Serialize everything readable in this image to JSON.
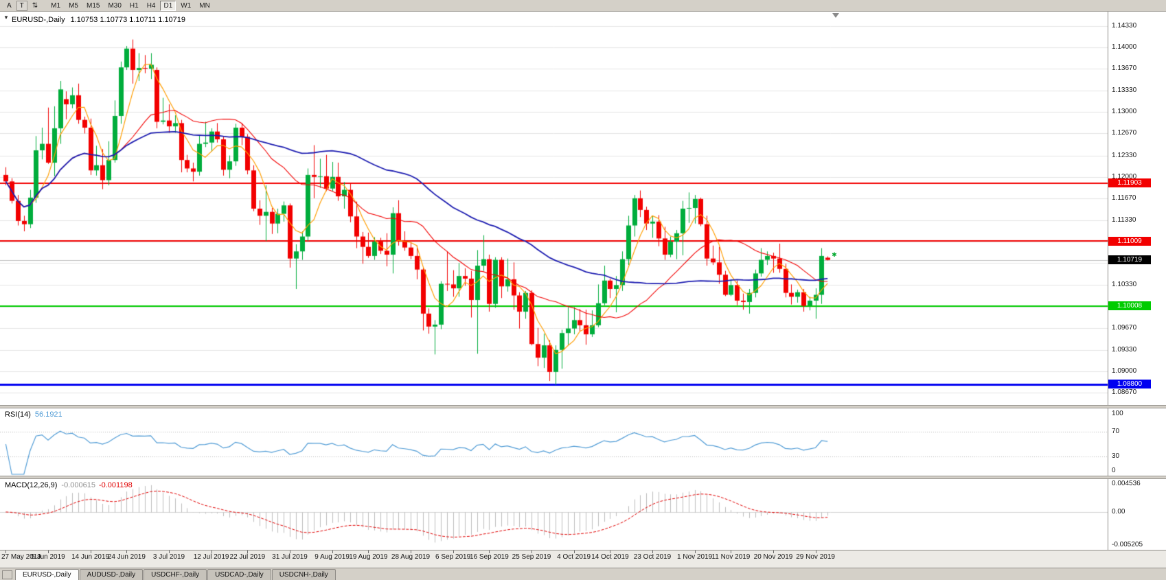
{
  "icons": {
    "one_click_trading": "▼",
    "toolbar_tool": "⇅",
    "order_marker": "✱"
  },
  "toolbar": {
    "left_buttons": [
      {
        "label": "A",
        "boxed": false
      },
      {
        "label": "T",
        "boxed": true
      }
    ],
    "timeframes": [
      "M1",
      "M5",
      "M15",
      "M30",
      "H1",
      "H4",
      "D1",
      "W1",
      "MN"
    ],
    "active_timeframe": "D1"
  },
  "price_panel": {
    "title_symbol": "EURUSD-,Daily",
    "title_ohlc": "1.10753 1.10773 1.10711 1.10719"
  },
  "rsi_panel": {
    "name": "RSI(14)",
    "value": "56.1921",
    "scale": [
      "100",
      "70",
      "30",
      "0"
    ]
  },
  "macd_panel": {
    "name": "MACD(12,26,9)",
    "main_value": "-0.000615",
    "signal_value": "-0.001198",
    "scale": [
      "0.004536",
      "0.00",
      "-0.005205"
    ]
  },
  "tabs": {
    "items": [
      {
        "label": "EURUSD-,Daily",
        "active": true
      },
      {
        "label": "AUDUSD-,Daily",
        "active": false
      },
      {
        "label": "USDCHF-,Daily",
        "active": false
      },
      {
        "label": "USDCAD-,Daily",
        "active": false
      },
      {
        "label": "USDCNH-,Daily",
        "active": false
      }
    ]
  },
  "chart_data": {
    "type": "candlestick",
    "symbol": "EURUSD-",
    "timeframe": "Daily",
    "title": "EURUSD-,Daily 1.10753 1.10773 1.10711 1.10719",
    "ylim": [
      1.0848,
      1.1455
    ],
    "price_ticks": [
      "1.14330",
      "1.14000",
      "1.13670",
      "1.13330",
      "1.13000",
      "1.12670",
      "1.12330",
      "1.12000",
      "1.11670",
      "1.11330",
      "1.11000",
      "1.10670",
      "1.10330",
      "1.10000",
      "1.09670",
      "1.09330",
      "1.09000",
      "1.08670"
    ],
    "x_labels": [
      [
        0,
        "27 May 2019"
      ],
      [
        7,
        "5 Jun 2019"
      ],
      [
        14,
        "14 Jun 2019"
      ],
      [
        20,
        "24 Jun 2019"
      ],
      [
        27,
        "3 Jul 2019"
      ],
      [
        34,
        "12 Jul 2019"
      ],
      [
        40,
        "22 Jul 2019"
      ],
      [
        47,
        "31 Jul 2019"
      ],
      [
        54,
        "9 Aug 2019"
      ],
      [
        60,
        "19 Aug 2019"
      ],
      [
        67,
        "28 Aug 2019"
      ],
      [
        74,
        "6 Sep 2019"
      ],
      [
        80,
        "16 Sep 2019"
      ],
      [
        87,
        "25 Sep 2019"
      ],
      [
        94,
        "4 Oct 2019"
      ],
      [
        100,
        "14 Oct 2019"
      ],
      [
        107,
        "23 Oct 2019"
      ],
      [
        114,
        "1 Nov 2019"
      ],
      [
        120,
        "11 Nov 2019"
      ],
      [
        127,
        "20 Nov 2019"
      ],
      [
        134,
        "29 Nov 2019"
      ]
    ],
    "levels": [
      {
        "price": 1.11903,
        "label": "1.11903",
        "color": "#f20000",
        "width": 2,
        "type": "resistance"
      },
      {
        "price": 1.11009,
        "label": "1.11009",
        "color": "#f20000",
        "width": 2,
        "type": "resistance"
      },
      {
        "price": 1.10008,
        "label": "1.10008",
        "color": "#00cc00",
        "width": 2,
        "type": "support"
      },
      {
        "price": 1.088,
        "label": "1.08800",
        "color": "#0000f0",
        "width": 3,
        "type": "support"
      }
    ],
    "bid": {
      "price": 1.10719,
      "label": "1.10719",
      "color": "#000000"
    },
    "current_bar": {
      "open": 1.10753,
      "high": 1.10773,
      "low": 1.10711,
      "close": 1.10719
    },
    "moving_averages": [
      {
        "period": 5,
        "color": "#ff9e00",
        "width": 1.2
      },
      {
        "period": 20,
        "color": "#f20000",
        "width": 1.1
      },
      {
        "period": 50,
        "color": "#1c1cb0",
        "width": 1.8
      }
    ],
    "indicators": {
      "rsi": {
        "period": 14,
        "current": 56.1921,
        "levels": [
          70,
          30
        ],
        "color": "#4f9bd5"
      },
      "macd": {
        "fast": 12,
        "slow": 26,
        "signal_period": 9,
        "current_main": -0.000615,
        "current_signal": -0.001198,
        "hist_color": "#bdbdbd",
        "signal_color": "#e00000"
      }
    },
    "colors": {
      "bull": "#00ad3c",
      "bear": "#f20000",
      "background": "#ffffff",
      "grid": "#e4e4e4",
      "bid_line": "#c0c0c0"
    },
    "candles": [
      [
        1.1203,
        1.1215,
        1.1187,
        1.1193
      ],
      [
        1.1193,
        1.1198,
        1.1159,
        1.1163
      ],
      [
        1.1163,
        1.1172,
        1.1125,
        1.1132
      ],
      [
        1.1132,
        1.114,
        1.1116,
        1.1127
      ],
      [
        1.1127,
        1.118,
        1.1121,
        1.1168
      ],
      [
        1.1168,
        1.1263,
        1.116,
        1.1241
      ],
      [
        1.1241,
        1.1276,
        1.1227,
        1.1251
      ],
      [
        1.1251,
        1.1307,
        1.122,
        1.1222
      ],
      [
        1.1222,
        1.1309,
        1.1201,
        1.1275
      ],
      [
        1.1275,
        1.1348,
        1.1251,
        1.1335
      ],
      [
        1.132,
        1.1332,
        1.1289,
        1.1312
      ],
      [
        1.1312,
        1.1338,
        1.1306,
        1.1326
      ],
      [
        1.1326,
        1.1344,
        1.1282,
        1.1288
      ],
      [
        1.1288,
        1.1293,
        1.1267,
        1.1276
      ],
      [
        1.1276,
        1.129,
        1.1203,
        1.121
      ],
      [
        1.121,
        1.1248,
        1.1202,
        1.1218
      ],
      [
        1.1218,
        1.1243,
        1.1181,
        1.1195
      ],
      [
        1.1195,
        1.1255,
        1.1187,
        1.1226
      ],
      [
        1.1226,
        1.1318,
        1.1222,
        1.1294
      ],
      [
        1.1294,
        1.1378,
        1.1282,
        1.1369
      ],
      [
        1.1369,
        1.1402,
        1.1365,
        1.1398
      ],
      [
        1.1398,
        1.1412,
        1.1344,
        1.1365
      ],
      [
        1.1365,
        1.1391,
        1.1348,
        1.1368
      ],
      [
        1.1368,
        1.1388,
        1.136,
        1.1367
      ],
      [
        1.1367,
        1.1391,
        1.1351,
        1.1373
      ],
      [
        1.1365,
        1.1369,
        1.1275,
        1.1285
      ],
      [
        1.1285,
        1.1322,
        1.1281,
        1.1287
      ],
      [
        1.1287,
        1.1312,
        1.1268,
        1.1278
      ],
      [
        1.1278,
        1.1295,
        1.1268,
        1.1283
      ],
      [
        1.1283,
        1.1288,
        1.1207,
        1.1226
      ],
      [
        1.1226,
        1.1234,
        1.1207,
        1.1213
      ],
      [
        1.1213,
        1.1222,
        1.1193,
        1.1208
      ],
      [
        1.1208,
        1.1264,
        1.1202,
        1.1251
      ],
      [
        1.1251,
        1.1285,
        1.1246,
        1.1253
      ],
      [
        1.1253,
        1.1275,
        1.1239,
        1.127
      ],
      [
        1.127,
        1.1283,
        1.1253,
        1.1258
      ],
      [
        1.1258,
        1.1263,
        1.1202,
        1.1211
      ],
      [
        1.1211,
        1.1233,
        1.1198,
        1.1224
      ],
      [
        1.1224,
        1.1282,
        1.1217,
        1.1276
      ],
      [
        1.1276,
        1.1283,
        1.1249,
        1.1262
      ],
      [
        1.1262,
        1.1266,
        1.1204,
        1.121
      ],
      [
        1.121,
        1.1218,
        1.1147,
        1.1151
      ],
      [
        1.1151,
        1.1164,
        1.1126,
        1.114
      ],
      [
        1.114,
        1.1187,
        1.1101,
        1.1146
      ],
      [
        1.1146,
        1.1152,
        1.1112,
        1.1128
      ],
      [
        1.1128,
        1.1151,
        1.1113,
        1.1143
      ],
      [
        1.1143,
        1.1162,
        1.1131,
        1.1156
      ],
      [
        1.1156,
        1.1159,
        1.106,
        1.1074
      ],
      [
        1.1074,
        1.1096,
        1.1027,
        1.1085
      ],
      [
        1.1085,
        1.1116,
        1.1072,
        1.1108
      ],
      [
        1.1108,
        1.1213,
        1.1101,
        1.1203
      ],
      [
        1.1203,
        1.1249,
        1.1167,
        1.12
      ],
      [
        1.12,
        1.1228,
        1.1183,
        1.1201
      ],
      [
        1.1201,
        1.1234,
        1.1178,
        1.1182
      ],
      [
        1.1182,
        1.1223,
        1.1178,
        1.12
      ],
      [
        1.12,
        1.1222,
        1.1163,
        1.117
      ],
      [
        1.117,
        1.1192,
        1.1151,
        1.118
      ],
      [
        1.118,
        1.119,
        1.113,
        1.1139
      ],
      [
        1.1139,
        1.1162,
        1.109,
        1.1108
      ],
      [
        1.1108,
        1.1115,
        1.1066,
        1.1092
      ],
      [
        1.1092,
        1.1114,
        1.1075,
        1.1078
      ],
      [
        1.1078,
        1.1107,
        1.1072,
        1.11
      ],
      [
        1.11,
        1.1106,
        1.1081,
        1.1086
      ],
      [
        1.1086,
        1.1113,
        1.1062,
        1.108
      ],
      [
        1.108,
        1.1153,
        1.1051,
        1.1144
      ],
      [
        1.1144,
        1.1164,
        1.1094,
        1.1101
      ],
      [
        1.1101,
        1.1116,
        1.1086,
        1.1091
      ],
      [
        1.1091,
        1.1098,
        1.1073,
        1.1078
      ],
      [
        1.1078,
        1.1094,
        1.1042,
        1.1057
      ],
      [
        1.1057,
        1.1061,
        1.0963,
        1.0989
      ],
      [
        1.0989,
        1.0997,
        1.0958,
        1.0969
      ],
      [
        1.0969,
        1.0979,
        1.0926,
        1.0972
      ],
      [
        1.0972,
        1.1039,
        1.0965,
        1.1035
      ],
      [
        1.1035,
        1.1085,
        1.1024,
        1.1034
      ],
      [
        1.1034,
        1.1056,
        1.1015,
        1.1028
      ],
      [
        1.1028,
        1.1067,
        1.1015,
        1.1047
      ],
      [
        1.1047,
        1.1059,
        1.1032,
        1.1043
      ],
      [
        1.1043,
        1.1055,
        1.0983,
        1.101
      ],
      [
        1.101,
        1.1087,
        1.0927,
        1.1063
      ],
      [
        1.1063,
        1.111,
        1.1055,
        1.1073
      ],
      [
        1.1073,
        1.108,
        1.0992,
        1.1004
      ],
      [
        1.1004,
        1.1076,
        1.0998,
        1.1072
      ],
      [
        1.1072,
        1.1076,
        1.1013,
        1.1031
      ],
      [
        1.1031,
        1.1074,
        1.1023,
        1.1042
      ],
      [
        1.1042,
        1.1068,
        1.0995,
        1.1017
      ],
      [
        1.1017,
        1.1022,
        1.0966,
        1.0992
      ],
      [
        1.0992,
        1.1024,
        1.0981,
        1.1021
      ],
      [
        1.1021,
        1.1025,
        1.094,
        1.0942
      ],
      [
        1.0942,
        1.0967,
        1.0908,
        1.0921
      ],
      [
        1.0921,
        1.0958,
        1.0905,
        1.094
      ],
      [
        1.094,
        1.0948,
        1.0885,
        1.0899
      ],
      [
        1.0899,
        1.094,
        1.0879,
        1.0933
      ],
      [
        1.0933,
        1.0964,
        1.0904,
        1.0959
      ],
      [
        1.0959,
        1.0999,
        1.0941,
        1.0966
      ],
      [
        1.0966,
        1.0999,
        1.0957,
        1.0979
      ],
      [
        1.0979,
        1.0996,
        1.0962,
        1.0971
      ],
      [
        1.0971,
        1.0995,
        1.0941,
        1.0957
      ],
      [
        1.0957,
        1.0994,
        1.0953,
        1.0971
      ],
      [
        1.0971,
        1.1034,
        1.0968,
        1.1005
      ],
      [
        1.1005,
        1.1063,
        1.1002,
        1.104
      ],
      [
        1.104,
        1.1043,
        1.1013,
        1.1027
      ],
      [
        1.1027,
        1.1047,
        1.0991,
        1.1033
      ],
      [
        1.1033,
        1.1085,
        1.1024,
        1.1073
      ],
      [
        1.1073,
        1.114,
        1.1064,
        1.1125
      ],
      [
        1.1125,
        1.1172,
        1.1108,
        1.1167
      ],
      [
        1.1167,
        1.1179,
        1.1138,
        1.1149
      ],
      [
        1.1149,
        1.1154,
        1.1118,
        1.1128
      ],
      [
        1.1128,
        1.114,
        1.1106,
        1.1131
      ],
      [
        1.1131,
        1.1141,
        1.1093,
        1.1105
      ],
      [
        1.1105,
        1.1123,
        1.1072,
        1.108
      ],
      [
        1.108,
        1.1108,
        1.1076,
        1.11
      ],
      [
        1.11,
        1.1118,
        1.1073,
        1.1113
      ],
      [
        1.1113,
        1.1163,
        1.1079,
        1.1151
      ],
      [
        1.1151,
        1.1176,
        1.1129,
        1.1152
      ],
      [
        1.1152,
        1.1172,
        1.1128,
        1.1166
      ],
      [
        1.1166,
        1.1168,
        1.1124,
        1.1127
      ],
      [
        1.1127,
        1.114,
        1.1063,
        1.1074
      ],
      [
        1.1074,
        1.1094,
        1.1064,
        1.1068
      ],
      [
        1.1068,
        1.1092,
        1.1035,
        1.1049
      ],
      [
        1.1049,
        1.1055,
        1.1016,
        1.1018
      ],
      [
        1.1018,
        1.1042,
        1.1016,
        1.1033
      ],
      [
        1.1033,
        1.104,
        1.1002,
        1.1009
      ],
      [
        1.1009,
        1.102,
        1.0995,
        1.1007
      ],
      [
        1.1007,
        1.1027,
        1.0989,
        1.1021
      ],
      [
        1.1021,
        1.1057,
        1.1014,
        1.1051
      ],
      [
        1.1051,
        1.109,
        1.1046,
        1.1072
      ],
      [
        1.1072,
        1.1085,
        1.1064,
        1.1078
      ],
      [
        1.1078,
        1.1083,
        1.1052,
        1.1074
      ],
      [
        1.1074,
        1.1097,
        1.1052,
        1.1058
      ],
      [
        1.1058,
        1.1066,
        1.1014,
        1.1021
      ],
      [
        1.1021,
        1.1034,
        1.1003,
        1.1015
      ],
      [
        1.1015,
        1.1026,
        1.1006,
        1.1022
      ],
      [
        1.1022,
        1.1027,
        1.0992,
        1.1001
      ],
      [
        1.1001,
        1.1015,
        1.0994,
        1.1009
      ],
      [
        1.1009,
        1.1028,
        1.0981,
        1.1018
      ],
      [
        1.1018,
        1.109,
        1.1004,
        1.1078
      ],
      [
        1.10753,
        1.10773,
        1.10711,
        1.10719
      ]
    ]
  }
}
